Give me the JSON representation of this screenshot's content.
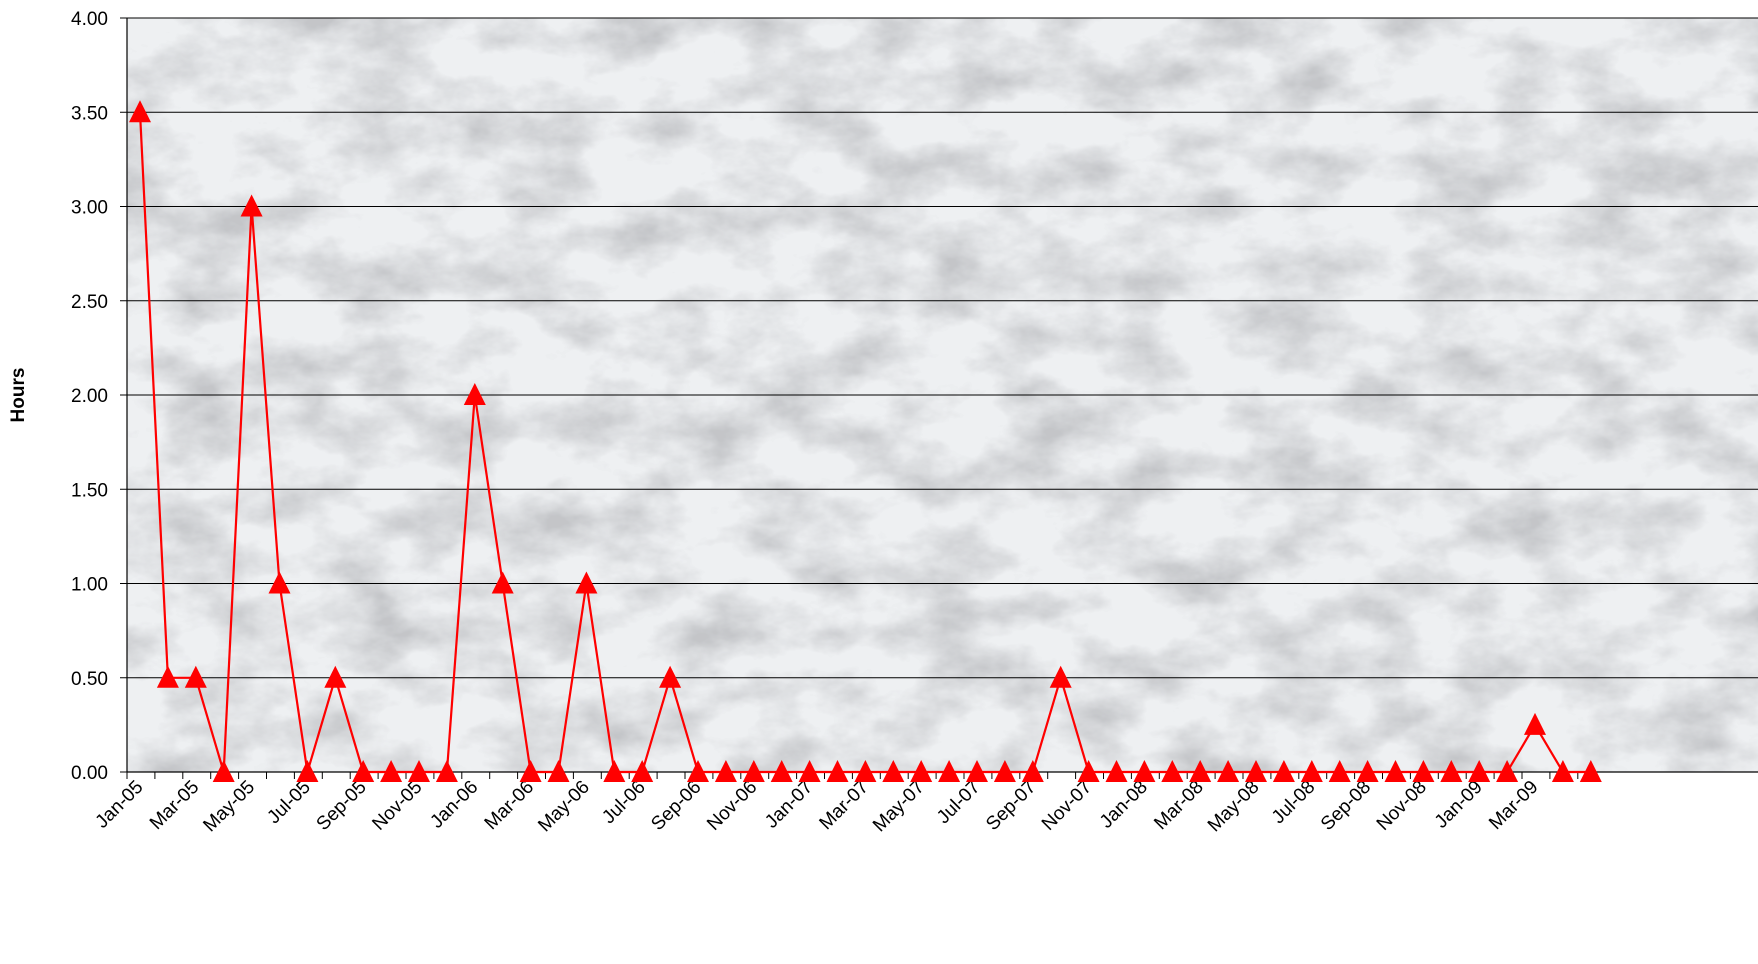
{
  "chart_data": {
    "type": "line",
    "title": "",
    "xlabel": "",
    "ylabel": "Hours",
    "ylim": [
      0,
      4
    ],
    "y_ticks": [
      "0.00",
      "0.50",
      "1.00",
      "1.50",
      "2.00",
      "2.50",
      "3.00",
      "3.50",
      "4.00"
    ],
    "grid": true,
    "legend": "none",
    "marker": "triangle",
    "series_color": "#ff0000",
    "background": "marble-texture",
    "x": [
      "Jan-05",
      "Feb-05",
      "Mar-05",
      "Apr-05",
      "May-05",
      "Jun-05",
      "Jul-05",
      "Aug-05",
      "Sep-05",
      "Oct-05",
      "Nov-05",
      "Dec-05",
      "Jan-06",
      "Feb-06",
      "Mar-06",
      "Apr-06",
      "May-06",
      "Jun-06",
      "Jul-06",
      "Aug-06",
      "Sep-06",
      "Oct-06",
      "Nov-06",
      "Dec-06",
      "Jan-07",
      "Feb-07",
      "Mar-07",
      "Apr-07",
      "May-07",
      "Jun-07",
      "Jul-07",
      "Aug-07",
      "Sep-07",
      "Oct-07",
      "Nov-07",
      "Dec-07",
      "Jan-08",
      "Feb-08",
      "Mar-08",
      "Apr-08",
      "May-08",
      "Jun-08",
      "Jul-08",
      "Aug-08",
      "Sep-08",
      "Oct-08",
      "Nov-08",
      "Dec-08",
      "Jan-09",
      "Feb-09",
      "Mar-09",
      "Apr-09",
      "May-09"
    ],
    "x_tick_labels": [
      "Jan-05",
      "Mar-05",
      "May-05",
      "Jul-05",
      "Sep-05",
      "Nov-05",
      "Jan-06",
      "Mar-06",
      "May-06",
      "Jul-06",
      "Sep-06",
      "Nov-06",
      "Jan-07",
      "Mar-07",
      "May-07",
      "Jul-07",
      "Sep-07",
      "Nov-07",
      "Jan-08",
      "Mar-08",
      "May-08",
      "Jul-08",
      "Sep-08",
      "Nov-08",
      "Jan-09",
      "Mar-09"
    ],
    "values": [
      3.5,
      0.5,
      0.5,
      0,
      3.0,
      1.0,
      0,
      0.5,
      0,
      0,
      0,
      0,
      2.0,
      1.0,
      0,
      0,
      1.0,
      0,
      0,
      0.5,
      0,
      0,
      0,
      0,
      0,
      0,
      0,
      0,
      0,
      0,
      0,
      0,
      0,
      0.5,
      0,
      0,
      0,
      0,
      0,
      0,
      0,
      0,
      0,
      0,
      0,
      0,
      0,
      0,
      0,
      0,
      0.25,
      0,
      0
    ]
  }
}
